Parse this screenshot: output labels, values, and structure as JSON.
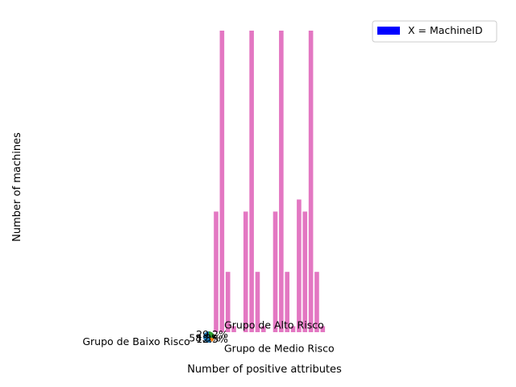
{
  "chart_data": {
    "type": "bar",
    "xlabel": "Number of positive attributes",
    "ylabel": "Number of machines",
    "legend": {
      "location": "top-right",
      "entries": [
        {
          "label": "X = MachineID",
          "color": "#0000ff"
        }
      ]
    },
    "bar_color": "#e377c2",
    "ylim": [
      0,
      5
    ],
    "axes_visible": false,
    "bars": {
      "values": [
        2,
        5,
        1,
        0.1,
        0,
        2,
        5,
        1,
        0.1,
        0,
        2,
        5,
        1,
        0.1,
        2.2,
        2,
        5,
        1,
        0.1
      ]
    },
    "pie": {
      "colors": [
        "#1f77b4",
        "#ff7f0e",
        "#2ca02c"
      ],
      "slices": [
        {
          "label": "Grupo de Baixo Risco",
          "pct_label": "58.3%",
          "value": 58.3
        },
        {
          "label": "Grupo de Medio Risco",
          "pct_label": "12.5%",
          "value": 12.5
        },
        {
          "label": "Grupo de Alto Risco",
          "pct_label": "29.2%",
          "value": 29.2
        }
      ]
    }
  }
}
